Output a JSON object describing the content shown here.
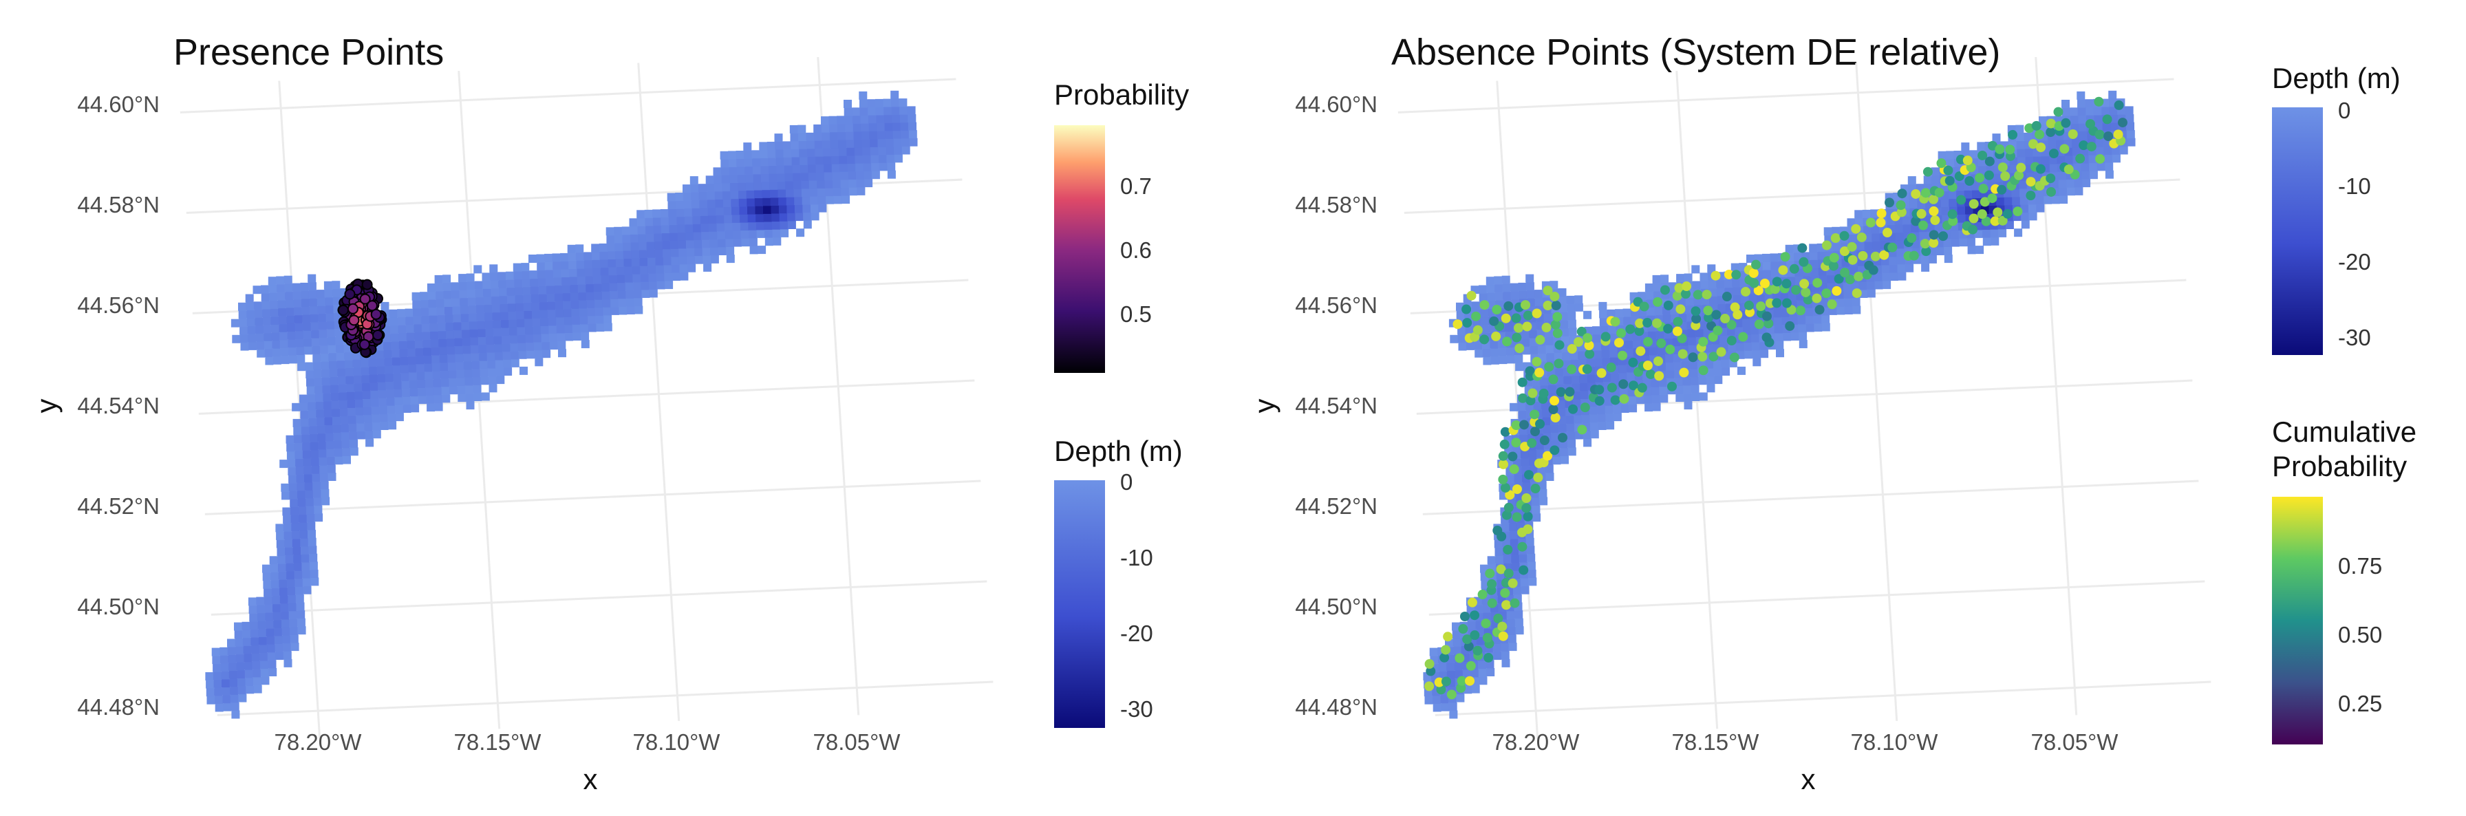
{
  "panels": [
    {
      "title": "Presence Points",
      "x_label": "x",
      "y_label": "y",
      "x_ticks": [
        "78.20°W",
        "78.15°W",
        "78.10°W",
        "78.05°W"
      ],
      "y_ticks": [
        "44.60°N",
        "44.58°N",
        "44.56°N",
        "44.54°N",
        "44.52°N",
        "44.50°N",
        "44.48°N"
      ],
      "legends": [
        {
          "title_lines": [
            "Probability"
          ],
          "ticks": [
            "0.7",
            "0.6",
            "0.5"
          ],
          "colormap": "magma"
        },
        {
          "title_lines": [
            "Depth (m)"
          ],
          "ticks": [
            "0",
            "-10",
            "-20",
            "-30"
          ],
          "colormap": "depth-blue"
        }
      ]
    },
    {
      "title": "Absence Points (System DE relative)",
      "x_label": "x",
      "y_label": "y",
      "x_ticks": [
        "78.20°W",
        "78.15°W",
        "78.10°W",
        "78.05°W"
      ],
      "y_ticks": [
        "44.60°N",
        "44.58°N",
        "44.56°N",
        "44.54°N",
        "44.52°N",
        "44.50°N",
        "44.48°N"
      ],
      "legends": [
        {
          "title_lines": [
            "Depth (m)"
          ],
          "ticks": [
            "0",
            "-10",
            "-20",
            "-30"
          ],
          "colormap": "depth-blue"
        },
        {
          "title_lines": [
            "Cumulative",
            "Probability"
          ],
          "ticks": [
            "0.75",
            "0.50",
            "0.25"
          ],
          "colormap": "viridis"
        }
      ]
    }
  ],
  "map_data": {
    "x_range_deg": [
      -78.235,
      -78.015
    ],
    "y_range_deg": [
      44.476,
      44.606
    ],
    "depth_range_m": [
      -33,
      0
    ],
    "probability_range": [
      0.42,
      0.8
    ],
    "cumulative_probability_range": [
      0.1,
      1.0
    ],
    "deep_basin_center": [
      -78.068,
      44.576
    ],
    "presence_cluster_center": [
      -78.181,
      44.557
    ],
    "colors": {
      "shallow": "#6e92e6",
      "mid": "#3d4fd0",
      "deep": "#0a0a78",
      "grid": "#ebebeb",
      "point_outline": "#000000"
    }
  }
}
